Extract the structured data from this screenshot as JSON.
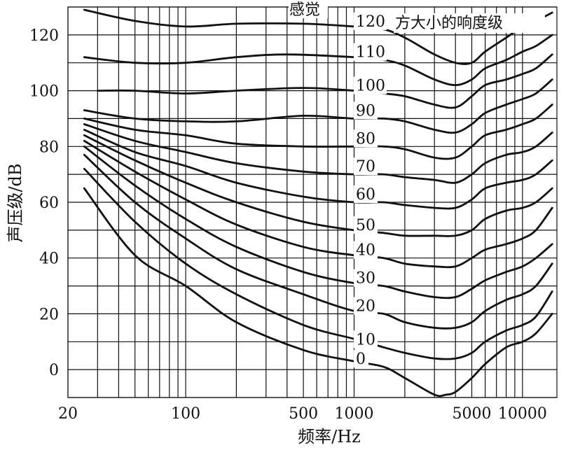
{
  "chart_data": {
    "type": "line",
    "title": "",
    "xlabel": "频率/Hz",
    "ylabel": "声压级/dB",
    "x_scale": "log",
    "xlim": [
      20,
      16000
    ],
    "ylim": [
      -10,
      130
    ],
    "grid": true,
    "x_tick_labels": [
      {
        "value": 20,
        "label": "20"
      },
      {
        "value": 100,
        "label": "100"
      },
      {
        "value": 500,
        "label": "500"
      },
      {
        "value": 1000,
        "label": "1000"
      },
      {
        "value": 5000,
        "label": "5000"
      },
      {
        "value": 10000,
        "label": "10000"
      }
    ],
    "y_tick_labels": [
      {
        "value": 0,
        "label": "0"
      },
      {
        "value": 20,
        "label": "20"
      },
      {
        "value": 40,
        "label": "40"
      },
      {
        "value": 60,
        "label": "60"
      },
      {
        "value": 80,
        "label": "80"
      },
      {
        "value": 100,
        "label": "100"
      },
      {
        "value": 120,
        "label": "120"
      }
    ],
    "annotation_top": "感觉",
    "unit_caption": "方大小的响度级",
    "series": [
      {
        "name": "0",
        "points": [
          [
            25,
            65
          ],
          [
            50,
            41
          ],
          [
            100,
            30
          ],
          [
            200,
            17
          ],
          [
            500,
            7
          ],
          [
            1000,
            3
          ],
          [
            1500,
            1
          ],
          [
            2000,
            -3
          ],
          [
            3000,
            -9
          ],
          [
            3500,
            -9
          ],
          [
            4000,
            -8
          ],
          [
            5000,
            -3
          ],
          [
            6000,
            2
          ],
          [
            8000,
            8
          ],
          [
            10000,
            10
          ],
          [
            12000,
            13
          ],
          [
            15000,
            20
          ]
        ]
      },
      {
        "name": "10",
        "points": [
          [
            25,
            72
          ],
          [
            50,
            53
          ],
          [
            100,
            38
          ],
          [
            200,
            27
          ],
          [
            500,
            16
          ],
          [
            1000,
            11
          ],
          [
            1500,
            8
          ],
          [
            2000,
            6
          ],
          [
            3000,
            4
          ],
          [
            4000,
            4
          ],
          [
            5000,
            6
          ],
          [
            6000,
            10
          ],
          [
            8000,
            14
          ],
          [
            10000,
            16
          ],
          [
            12000,
            19
          ],
          [
            15000,
            28
          ]
        ]
      },
      {
        "name": "20",
        "points": [
          [
            25,
            77
          ],
          [
            50,
            60
          ],
          [
            100,
            47
          ],
          [
            200,
            36
          ],
          [
            500,
            27
          ],
          [
            1000,
            21
          ],
          [
            1500,
            20
          ],
          [
            2000,
            17
          ],
          [
            3000,
            15
          ],
          [
            4000,
            15
          ],
          [
            5000,
            17
          ],
          [
            6000,
            21
          ],
          [
            8000,
            25
          ],
          [
            10000,
            27
          ],
          [
            12000,
            30
          ],
          [
            15000,
            38
          ]
        ]
      },
      {
        "name": "30",
        "points": [
          [
            25,
            80
          ],
          [
            50,
            66
          ],
          [
            100,
            54
          ],
          [
            200,
            44
          ],
          [
            500,
            35
          ],
          [
            1000,
            31
          ],
          [
            1500,
            30
          ],
          [
            2000,
            28
          ],
          [
            3000,
            26
          ],
          [
            4000,
            26
          ],
          [
            5000,
            29
          ],
          [
            6000,
            32
          ],
          [
            8000,
            35
          ],
          [
            10000,
            37
          ],
          [
            12000,
            40
          ],
          [
            15000,
            45
          ]
        ]
      },
      {
        "name": "40",
        "points": [
          [
            25,
            82
          ],
          [
            50,
            71
          ],
          [
            100,
            61
          ],
          [
            200,
            52
          ],
          [
            500,
            44
          ],
          [
            1000,
            41
          ],
          [
            1500,
            40
          ],
          [
            2000,
            38
          ],
          [
            3000,
            37
          ],
          [
            4000,
            37
          ],
          [
            5000,
            40
          ],
          [
            6000,
            43
          ],
          [
            8000,
            45
          ],
          [
            10000,
            47
          ],
          [
            12000,
            50
          ],
          [
            15000,
            58
          ]
        ]
      },
      {
        "name": "50",
        "points": [
          [
            25,
            84
          ],
          [
            50,
            75
          ],
          [
            100,
            67
          ],
          [
            200,
            60
          ],
          [
            500,
            53
          ],
          [
            1000,
            50
          ],
          [
            1500,
            49
          ],
          [
            2000,
            48
          ],
          [
            3000,
            48
          ],
          [
            4000,
            48
          ],
          [
            5000,
            50
          ],
          [
            6000,
            54
          ],
          [
            8000,
            57
          ],
          [
            10000,
            58
          ],
          [
            12000,
            60
          ],
          [
            15000,
            65
          ]
        ]
      },
      {
        "name": "60",
        "points": [
          [
            25,
            86
          ],
          [
            50,
            78
          ],
          [
            100,
            73
          ],
          [
            200,
            67
          ],
          [
            500,
            62
          ],
          [
            1000,
            60
          ],
          [
            1500,
            60
          ],
          [
            2000,
            59
          ],
          [
            3000,
            58
          ],
          [
            4000,
            58
          ],
          [
            5000,
            61
          ],
          [
            6000,
            65
          ],
          [
            8000,
            67
          ],
          [
            10000,
            68
          ],
          [
            12000,
            70
          ],
          [
            15000,
            75
          ]
        ]
      },
      {
        "name": "70",
        "points": [
          [
            25,
            88
          ],
          [
            50,
            82
          ],
          [
            100,
            78
          ],
          [
            200,
            74
          ],
          [
            500,
            71
          ],
          [
            1000,
            70
          ],
          [
            1500,
            70
          ],
          [
            2000,
            69
          ],
          [
            3000,
            68
          ],
          [
            4000,
            67
          ],
          [
            5000,
            70
          ],
          [
            6000,
            74
          ],
          [
            8000,
            77
          ],
          [
            10000,
            78
          ],
          [
            12000,
            80
          ],
          [
            15000,
            85
          ]
        ]
      },
      {
        "name": "80",
        "points": [
          [
            25,
            90
          ],
          [
            50,
            86
          ],
          [
            100,
            84
          ],
          [
            200,
            81
          ],
          [
            500,
            80
          ],
          [
            1000,
            80
          ],
          [
            1500,
            80
          ],
          [
            2000,
            79
          ],
          [
            3000,
            76
          ],
          [
            4000,
            76
          ],
          [
            5000,
            80
          ],
          [
            6000,
            84
          ],
          [
            8000,
            86
          ],
          [
            10000,
            88
          ],
          [
            12000,
            90
          ],
          [
            15000,
            95
          ]
        ]
      },
      {
        "name": "90",
        "points": [
          [
            25,
            93
          ],
          [
            50,
            90
          ],
          [
            100,
            89
          ],
          [
            200,
            89
          ],
          [
            500,
            91
          ],
          [
            1000,
            90
          ],
          [
            1500,
            90
          ],
          [
            2000,
            89
          ],
          [
            3000,
            86
          ],
          [
            4000,
            85
          ],
          [
            5000,
            88
          ],
          [
            6000,
            92
          ],
          [
            8000,
            95
          ],
          [
            10000,
            97
          ],
          [
            12000,
            99
          ],
          [
            15000,
            104
          ]
        ]
      },
      {
        "name": "100",
        "points": [
          [
            30,
            100
          ],
          [
            50,
            100
          ],
          [
            100,
            99
          ],
          [
            200,
            100
          ],
          [
            500,
            101
          ],
          [
            1000,
            100
          ],
          [
            1500,
            99
          ],
          [
            2000,
            98
          ],
          [
            3000,
            95
          ],
          [
            4000,
            94
          ],
          [
            5000,
            98
          ],
          [
            6000,
            102
          ],
          [
            8000,
            104
          ],
          [
            10000,
            106
          ],
          [
            12000,
            108
          ],
          [
            15000,
            113
          ]
        ]
      },
      {
        "name": "110",
        "points": [
          [
            25,
            112
          ],
          [
            50,
            110
          ],
          [
            100,
            110
          ],
          [
            200,
            112
          ],
          [
            400,
            113
          ],
          [
            1000,
            112
          ],
          [
            1500,
            111
          ],
          [
            2000,
            109
          ],
          [
            3000,
            104
          ],
          [
            4000,
            102
          ],
          [
            5000,
            104
          ],
          [
            6000,
            108
          ],
          [
            8000,
            111
          ],
          [
            10000,
            114
          ],
          [
            12000,
            116
          ],
          [
            15000,
            120
          ]
        ]
      },
      {
        "name": "120",
        "points": [
          [
            25,
            129
          ],
          [
            50,
            125
          ],
          [
            100,
            123
          ],
          [
            200,
            124
          ],
          [
            500,
            124
          ],
          [
            1000,
            123
          ],
          [
            1500,
            122
          ],
          [
            2000,
            119
          ],
          [
            3000,
            113
          ],
          [
            4000,
            110
          ],
          [
            5000,
            110
          ],
          [
            6000,
            114
          ],
          [
            8000,
            119
          ],
          [
            10000,
            123
          ],
          [
            12000,
            125
          ],
          [
            15000,
            128
          ]
        ]
      }
    ]
  }
}
